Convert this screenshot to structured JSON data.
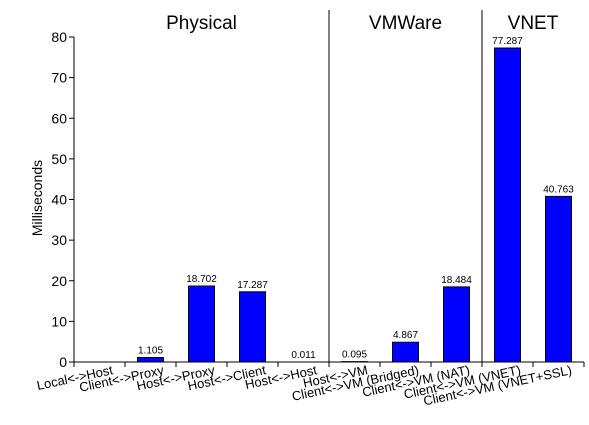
{
  "chart_data": {
    "type": "bar",
    "categories": [
      "Local<->Host",
      "Client<->Proxy",
      "Host<->Proxy",
      "Host<->Client",
      "Host<->Host",
      "Host<->VM",
      "Client<->VM (Bridged)",
      "Client<->VM (NAT)",
      "Client<->VM (VNET)",
      "Client<->VM (VNET+SSL)"
    ],
    "values": [
      0,
      1.105,
      18.702,
      17.287,
      0.011,
      0.095,
      4.867,
      18.484,
      77.287,
      40.763
    ],
    "data_labels": [
      "",
      "1.105",
      "18.702",
      "17.287",
      "0.011",
      "0.095",
      "4.867",
      "18.484",
      "77.287",
      "40.763"
    ],
    "ylabel": "Milliseconds",
    "ylim": [
      0,
      80
    ],
    "yticks": [
      0,
      10,
      20,
      30,
      40,
      50,
      60,
      70,
      80
    ],
    "groups": [
      {
        "label": "Physical",
        "start": 0,
        "end": 4
      },
      {
        "label": "VMWare",
        "start": 5,
        "end": 7
      },
      {
        "label": "VNET",
        "start": 8,
        "end": 9
      }
    ],
    "bar_color": "#0000ff",
    "grid": false,
    "legend": "none"
  }
}
